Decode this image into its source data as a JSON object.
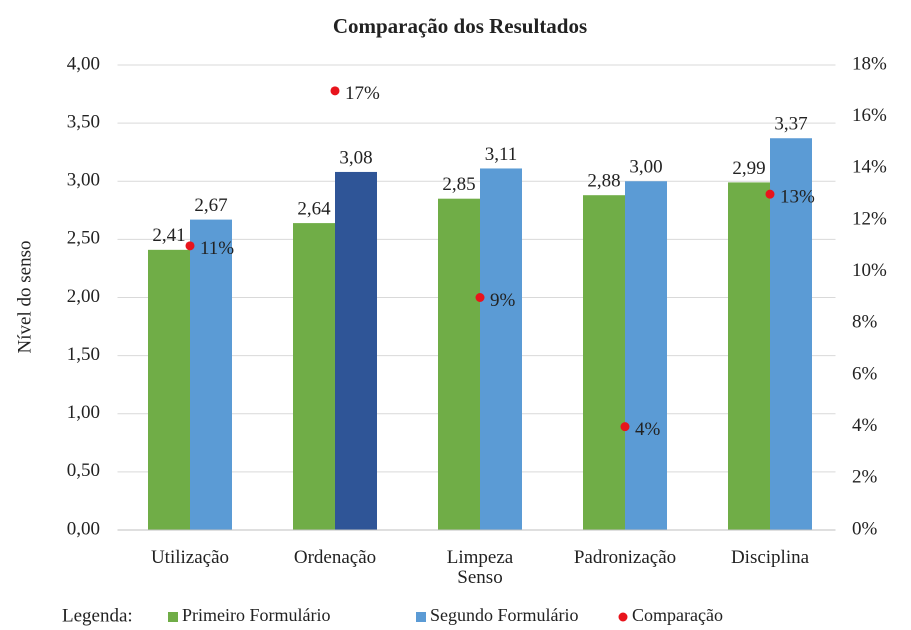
{
  "chart_data": {
    "type": "bar",
    "title": "Comparação  dos Resultados",
    "y_label": "Nível do senso",
    "legend_title": "Legenda:",
    "categories": [
      "Utilização",
      "Ordenação",
      "Limpeza\nSenso",
      "Padronização",
      "Disciplina"
    ],
    "series": [
      {
        "name": "Primeiro Formulário",
        "color": "#70ad47",
        "values": [
          2.41,
          2.64,
          2.85,
          2.88,
          2.99
        ],
        "value_labels": [
          "2,41",
          "2,64",
          "2,85",
          "2,88",
          "2,99"
        ]
      },
      {
        "name": "Segundo Formulário",
        "color": "#5b9bd5",
        "colors": [
          "#5b9bd5",
          "#2f5597",
          "#5b9bd5",
          "#5b9bd5",
          "#5b9bd5"
        ],
        "values": [
          2.67,
          3.08,
          3.11,
          3.0,
          3.37
        ],
        "value_labels": [
          "2,67",
          "3,08",
          "3,11",
          "3,00",
          "3,37"
        ]
      },
      {
        "name": "Comparação",
        "type": "scatter",
        "axis": "y2",
        "color": "#e8141c",
        "values": [
          11,
          17,
          9,
          4,
          13
        ],
        "value_labels": [
          "11%",
          "17%",
          "9%",
          "4%",
          "13%"
        ]
      }
    ],
    "ylim": [
      0,
      4
    ],
    "yticks": [
      {
        "value": 0,
        "label": "0,00"
      },
      {
        "value": 0.5,
        "label": "0,50"
      },
      {
        "value": 1,
        "label": "1,00"
      },
      {
        "value": 1.5,
        "label": "1,50"
      },
      {
        "value": 2,
        "label": "2,00"
      },
      {
        "value": 2.5,
        "label": "2,50"
      },
      {
        "value": 3,
        "label": "3,00"
      },
      {
        "value": 3.5,
        "label": "3,50"
      },
      {
        "value": 4,
        "label": "4,00"
      }
    ],
    "y2lim": [
      0,
      18
    ],
    "y2ticks": [
      {
        "value": 0,
        "label": "0%"
      },
      {
        "value": 2,
        "label": "2%"
      },
      {
        "value": 4,
        "label": "4%"
      },
      {
        "value": 6,
        "label": "6%"
      },
      {
        "value": 8,
        "label": "8%"
      },
      {
        "value": 10,
        "label": "10%"
      },
      {
        "value": 12,
        "label": "12%"
      },
      {
        "value": 14,
        "label": "14%"
      },
      {
        "value": 16,
        "label": "16%"
      },
      {
        "value": 18,
        "label": "18%"
      }
    ],
    "grid": true
  }
}
